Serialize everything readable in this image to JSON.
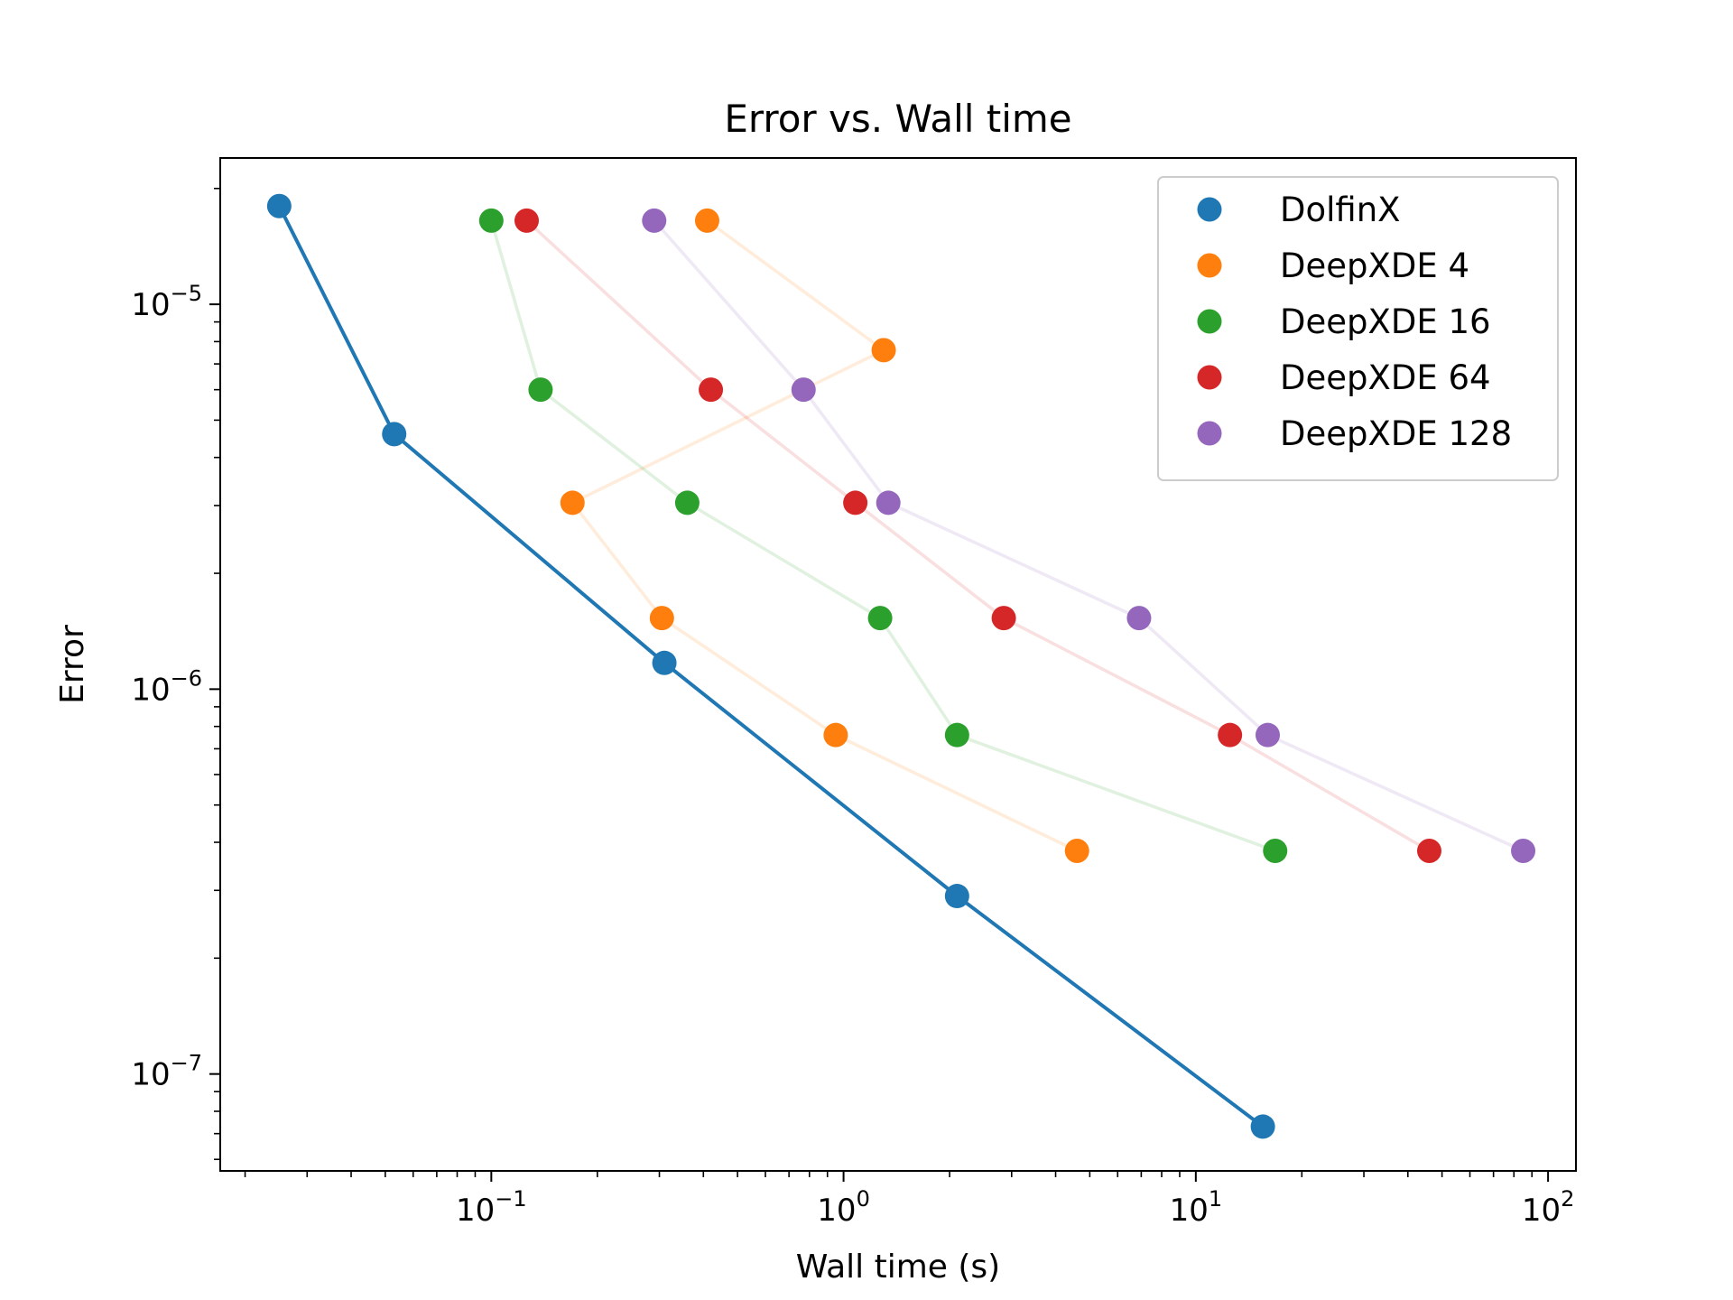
{
  "chart_data": {
    "type": "scatter",
    "title": "Error vs. Wall time",
    "xlabel": "Wall time (s)",
    "ylabel": "Error",
    "xscale": "log",
    "yscale": "log",
    "xlim": [
      0.017,
      120
    ],
    "ylim": [
      5.6e-08,
      2.4e-05
    ],
    "x_tick_labels": [
      {
        "value": 0.1,
        "base": "10",
        "exp": "−1"
      },
      {
        "value": 1,
        "base": "10",
        "exp": "0"
      },
      {
        "value": 10,
        "base": "10",
        "exp": "1"
      },
      {
        "value": 100,
        "base": "10",
        "exp": "2"
      }
    ],
    "y_tick_labels": [
      {
        "value": 1e-05,
        "base": "10",
        "exp": "−5"
      },
      {
        "value": 1e-06,
        "base": "10",
        "exp": "−6"
      },
      {
        "value": 1e-07,
        "base": "10",
        "exp": "−7"
      }
    ],
    "grid": false,
    "legend_position": "top-right",
    "series": [
      {
        "name": "DolfinX",
        "color": "#1f77b4",
        "line_alpha": 1.0,
        "points": [
          {
            "x": 0.025,
            "y": 1.8e-05
          },
          {
            "x": 0.053,
            "y": 4.6e-06
          },
          {
            "x": 0.31,
            "y": 1.17e-06
          },
          {
            "x": 2.1,
            "y": 2.9e-07
          },
          {
            "x": 15.5,
            "y": 7.3e-08
          }
        ]
      },
      {
        "name": "DeepXDE 4",
        "color": "#ff7f0e",
        "line_alpha": 0.15,
        "points": [
          {
            "x": 0.41,
            "y": 1.65e-05
          },
          {
            "x": 1.3,
            "y": 7.6e-06
          },
          {
            "x": 0.17,
            "y": 3.05e-06
          },
          {
            "x": 0.305,
            "y": 1.53e-06
          },
          {
            "x": 0.95,
            "y": 7.6e-07
          },
          {
            "x": 4.6,
            "y": 3.8e-07
          }
        ]
      },
      {
        "name": "DeepXDE 16",
        "color": "#2ca02c",
        "line_alpha": 0.15,
        "points": [
          {
            "x": 0.1,
            "y": 1.65e-05
          },
          {
            "x": 0.138,
            "y": 6e-06
          },
          {
            "x": 0.36,
            "y": 3.05e-06
          },
          {
            "x": 1.27,
            "y": 1.53e-06
          },
          {
            "x": 2.1,
            "y": 7.6e-07
          },
          {
            "x": 16.8,
            "y": 3.8e-07
          }
        ]
      },
      {
        "name": "DeepXDE 64",
        "color": "#d62728",
        "line_alpha": 0.15,
        "points": [
          {
            "x": 0.126,
            "y": 1.65e-05
          },
          {
            "x": 0.42,
            "y": 6e-06
          },
          {
            "x": 1.08,
            "y": 3.05e-06
          },
          {
            "x": 2.85,
            "y": 1.53e-06
          },
          {
            "x": 12.5,
            "y": 7.6e-07
          },
          {
            "x": 46,
            "y": 3.8e-07
          }
        ]
      },
      {
        "name": "DeepXDE 128",
        "color": "#9467bd",
        "line_alpha": 0.15,
        "points": [
          {
            "x": 0.29,
            "y": 1.65e-05
          },
          {
            "x": 0.77,
            "y": 6e-06
          },
          {
            "x": 1.34,
            "y": 3.05e-06
          },
          {
            "x": 6.9,
            "y": 1.53e-06
          },
          {
            "x": 16,
            "y": 7.6e-07
          },
          {
            "x": 85,
            "y": 3.8e-07
          }
        ]
      }
    ]
  }
}
